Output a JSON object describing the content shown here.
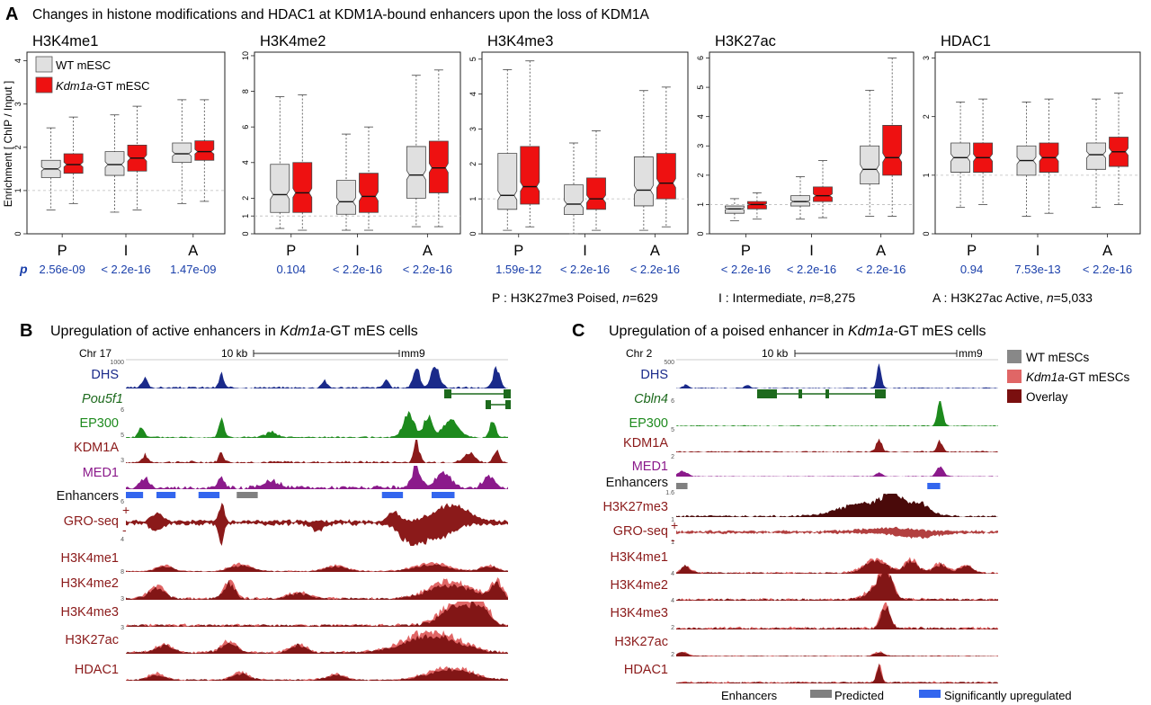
{
  "panelA": {
    "letter": "A",
    "title": "Changes in histone modifications and HDAC1 at KDM1A-bound enhancers upon the loss of KDM1A",
    "yaxis_label": "Enrichment [ ChIP / Input ]",
    "legend": [
      {
        "label": "WT mESC",
        "color": "#e0e0e0",
        "italic_part": ""
      },
      {
        "label": "-GT mESC",
        "color": "#ee1111",
        "italic_part": "Kdm1a"
      }
    ],
    "p_label": "p",
    "value_color": "#1a3faa",
    "categories": [
      "P",
      "I",
      "A"
    ],
    "category_key": [
      {
        "text": "P : H3K27me3 Poised, ",
        "n_label": "n",
        "n_value": "=629"
      },
      {
        "text": "I : Intermediate, ",
        "n_label": "n",
        "n_value": "=8,275"
      },
      {
        "text": "A : H3K27ac Active, ",
        "n_label": "n",
        "n_value": "=5,033"
      }
    ]
  },
  "chart_data": [
    {
      "type": "box",
      "title": "H3K4me1",
      "ylim": [
        0,
        4.2
      ],
      "yticks": [
        0,
        1,
        2,
        3,
        4
      ],
      "categories": [
        "P",
        "I",
        "A"
      ],
      "pvalues": [
        "2.56e-09",
        "< 2.2e-16",
        "1.47e-09"
      ],
      "series": [
        {
          "name": "WT mESC",
          "boxes": [
            {
              "min": 0.55,
              "q1": 1.3,
              "med": 1.5,
              "q3": 1.7,
              "max": 2.45
            },
            {
              "min": 0.5,
              "q1": 1.35,
              "med": 1.6,
              "q3": 1.9,
              "max": 2.75
            },
            {
              "min": 0.7,
              "q1": 1.65,
              "med": 1.85,
              "q3": 2.1,
              "max": 3.1
            }
          ]
        },
        {
          "name": "Kdm1a-GT mESC",
          "boxes": [
            {
              "min": 0.7,
              "q1": 1.4,
              "med": 1.6,
              "q3": 1.85,
              "max": 2.7
            },
            {
              "min": 0.55,
              "q1": 1.45,
              "med": 1.75,
              "q3": 2.05,
              "max": 2.95
            },
            {
              "min": 0.75,
              "q1": 1.7,
              "med": 1.9,
              "q3": 2.15,
              "max": 3.1
            }
          ]
        }
      ]
    },
    {
      "type": "box",
      "title": "H3K4me2",
      "ylim": [
        0,
        10.2
      ],
      "yticks": [
        0,
        1,
        2,
        4,
        6,
        8,
        10
      ],
      "categories": [
        "P",
        "I",
        "A"
      ],
      "pvalues": [
        "0.104",
        "< 2.2e-16",
        "< 2.2e-16"
      ],
      "series": [
        {
          "name": "WT mESC",
          "boxes": [
            {
              "min": 0.3,
              "q1": 1.2,
              "med": 2.2,
              "q3": 3.9,
              "max": 7.7
            },
            {
              "min": 0.2,
              "q1": 1.1,
              "med": 1.8,
              "q3": 3.0,
              "max": 5.6
            },
            {
              "min": 0.4,
              "q1": 2.0,
              "med": 3.3,
              "q3": 4.9,
              "max": 8.9
            }
          ]
        },
        {
          "name": "Kdm1a-GT mESC",
          "boxes": [
            {
              "min": 0.2,
              "q1": 1.2,
              "med": 2.3,
              "q3": 4.0,
              "max": 7.8
            },
            {
              "min": 0.2,
              "q1": 1.2,
              "med": 2.1,
              "q3": 3.4,
              "max": 6.0
            },
            {
              "min": 0.4,
              "q1": 2.3,
              "med": 3.7,
              "q3": 5.2,
              "max": 9.2
            }
          ]
        }
      ]
    },
    {
      "type": "box",
      "title": "H3K4me3",
      "ylim": [
        0,
        5.2
      ],
      "yticks": [
        0,
        1,
        2,
        3,
        4,
        5
      ],
      "categories": [
        "P",
        "I",
        "A"
      ],
      "pvalues": [
        "1.59e-12",
        "< 2.2e-16",
        "< 2.2e-16"
      ],
      "series": [
        {
          "name": "WT mESC",
          "boxes": [
            {
              "min": 0.1,
              "q1": 0.7,
              "med": 1.1,
              "q3": 2.3,
              "max": 4.7
            },
            {
              "min": 0.0,
              "q1": 0.55,
              "med": 0.85,
              "q3": 1.4,
              "max": 2.6
            },
            {
              "min": 0.1,
              "q1": 0.8,
              "med": 1.25,
              "q3": 2.2,
              "max": 4.1
            }
          ]
        },
        {
          "name": "Kdm1a-GT mESC",
          "boxes": [
            {
              "min": 0.2,
              "q1": 0.85,
              "med": 1.35,
              "q3": 2.5,
              "max": 4.95
            },
            {
              "min": 0.1,
              "q1": 0.7,
              "med": 1.0,
              "q3": 1.6,
              "max": 2.95
            },
            {
              "min": 0.2,
              "q1": 1.0,
              "med": 1.45,
              "q3": 2.3,
              "max": 4.2
            }
          ]
        }
      ]
    },
    {
      "type": "box",
      "title": "H3K27ac",
      "ylim": [
        0,
        6.2
      ],
      "yticks": [
        0,
        1,
        2,
        3,
        4,
        5,
        6
      ],
      "categories": [
        "P",
        "I",
        "A"
      ],
      "pvalues": [
        "< 2.2e-16",
        "< 2.2e-16",
        "< 2.2e-16"
      ],
      "series": [
        {
          "name": "WT mESC",
          "boxes": [
            {
              "min": 0.45,
              "q1": 0.7,
              "med": 0.85,
              "q3": 0.95,
              "max": 1.2
            },
            {
              "min": 0.5,
              "q1": 0.95,
              "med": 1.1,
              "q3": 1.3,
              "max": 1.95
            },
            {
              "min": 0.6,
              "q1": 1.7,
              "med": 2.2,
              "q3": 3.0,
              "max": 4.9
            }
          ]
        },
        {
          "name": "Kdm1a-GT mESC",
          "boxes": [
            {
              "min": 0.5,
              "q1": 0.85,
              "med": 1.0,
              "q3": 1.1,
              "max": 1.4
            },
            {
              "min": 0.55,
              "q1": 1.1,
              "med": 1.3,
              "q3": 1.6,
              "max": 2.5
            },
            {
              "min": 0.6,
              "q1": 2.0,
              "med": 2.6,
              "q3": 3.7,
              "max": 6.0
            }
          ]
        }
      ]
    },
    {
      "type": "box",
      "title": "HDAC1",
      "ylim": [
        0,
        3.1
      ],
      "yticks": [
        0,
        1,
        2,
        3
      ],
      "categories": [
        "P",
        "I",
        "A"
      ],
      "pvalues": [
        "0.94",
        "7.53e-13",
        "< 2.2e-16"
      ],
      "series": [
        {
          "name": "WT mESC",
          "boxes": [
            {
              "min": 0.45,
              "q1": 1.05,
              "med": 1.3,
              "q3": 1.55,
              "max": 2.25
            },
            {
              "min": 0.3,
              "q1": 1.0,
              "med": 1.25,
              "q3": 1.5,
              "max": 2.25
            },
            {
              "min": 0.45,
              "q1": 1.1,
              "med": 1.35,
              "q3": 1.55,
              "max": 2.3
            }
          ]
        },
        {
          "name": "Kdm1a-GT mESC",
          "boxes": [
            {
              "min": 0.5,
              "q1": 1.05,
              "med": 1.3,
              "q3": 1.55,
              "max": 2.3
            },
            {
              "min": 0.35,
              "q1": 1.05,
              "med": 1.3,
              "q3": 1.55,
              "max": 2.3
            },
            {
              "min": 0.5,
              "q1": 1.15,
              "med": 1.4,
              "q3": 1.65,
              "max": 2.4
            }
          ]
        }
      ]
    }
  ],
  "panelB": {
    "letter": "B",
    "title_pre": "Upregulation of active enhancers in ",
    "title_italic": "Kdm1a",
    "title_post": "-GT mES cells",
    "chrom": "Chr 17",
    "scale": "10 kb",
    "assembly": "mm9",
    "gene_name": "Pou5f1",
    "scale_max": [
      "1000",
      "6",
      "5",
      "3",
      "6",
      "4",
      "8",
      "3",
      "3"
    ],
    "tracks": [
      {
        "label": "DHS",
        "color": "#1a2a8a"
      },
      {
        "label": "EP300",
        "color": "#1d8a1d"
      },
      {
        "label": "KDM1A",
        "color": "#8b1a1a"
      },
      {
        "label": "MED1",
        "color": "#8b1a8b"
      },
      {
        "label": "Enhancers",
        "color": "#111111"
      },
      {
        "label": "GRO-seq",
        "color": "#8b1a1a"
      },
      {
        "label": "H3K4me1",
        "color": "#8b1a1a"
      },
      {
        "label": "H3K4me2",
        "color": "#8b1a1a"
      },
      {
        "label": "H3K4me3",
        "color": "#8b1a1a"
      },
      {
        "label": "H3K27ac",
        "color": "#8b1a1a"
      },
      {
        "label": "HDAC1",
        "color": "#8b1a1a"
      }
    ],
    "enhancers": [
      {
        "start": 0.0,
        "end": 0.045,
        "type": "up"
      },
      {
        "start": 0.08,
        "end": 0.13,
        "type": "up"
      },
      {
        "start": 0.19,
        "end": 0.245,
        "type": "up"
      },
      {
        "start": 0.29,
        "end": 0.345,
        "type": "predicted"
      },
      {
        "start": 0.67,
        "end": 0.725,
        "type": "up"
      },
      {
        "start": 0.8,
        "end": 0.86,
        "type": "up"
      }
    ]
  },
  "panelC": {
    "letter": "C",
    "title_pre": "Upregulation of a poised enhancer in ",
    "title_italic": "Kdm1a",
    "title_post": "-GT mES cells",
    "chrom": "Chr 2",
    "scale": "10 kb",
    "assembly": "mm9",
    "gene_name": "Cbln4",
    "scale_max": [
      "500",
      "6",
      "5",
      "2",
      "1.6",
      "1",
      "1",
      "4",
      "4",
      "2",
      "2"
    ],
    "tracks": [
      {
        "label": "DHS",
        "color": "#1a2a8a"
      },
      {
        "label": "EP300",
        "color": "#1d8a1d"
      },
      {
        "label": "KDM1A",
        "color": "#8b1a1a"
      },
      {
        "label": "MED1",
        "color": "#8b1a8b"
      },
      {
        "label": "Enhancers",
        "color": "#111111"
      },
      {
        "label": "H3K27me3",
        "color": "#8b1a1a"
      },
      {
        "label": "GRO-seq",
        "color": "#8b1a1a"
      },
      {
        "label": "H3K4me1",
        "color": "#8b1a1a"
      },
      {
        "label": "H3K4me2",
        "color": "#8b1a1a"
      },
      {
        "label": "H3K4me3",
        "color": "#8b1a1a"
      },
      {
        "label": "H3K27ac",
        "color": "#8b1a1a"
      },
      {
        "label": "HDAC1",
        "color": "#8b1a1a"
      }
    ],
    "enhancers": [
      {
        "start": 0.0,
        "end": 0.035,
        "type": "predicted"
      },
      {
        "start": 0.78,
        "end": 0.82,
        "type": "up"
      }
    ],
    "legend": [
      {
        "label": "WT mESCs",
        "italic_part": "",
        "color": "#888888"
      },
      {
        "label": "-GT mESCs",
        "italic_part": "Kdm1a",
        "color": "#e06666"
      },
      {
        "label": "Overlay",
        "italic_part": "",
        "color": "#7a0f0f"
      }
    ]
  },
  "enhancer_legend": {
    "title": "Enhancers",
    "items": [
      {
        "label": "Predicted",
        "color": "#808080"
      },
      {
        "label": "Significantly upregulated",
        "color": "#3366ee"
      }
    ]
  }
}
